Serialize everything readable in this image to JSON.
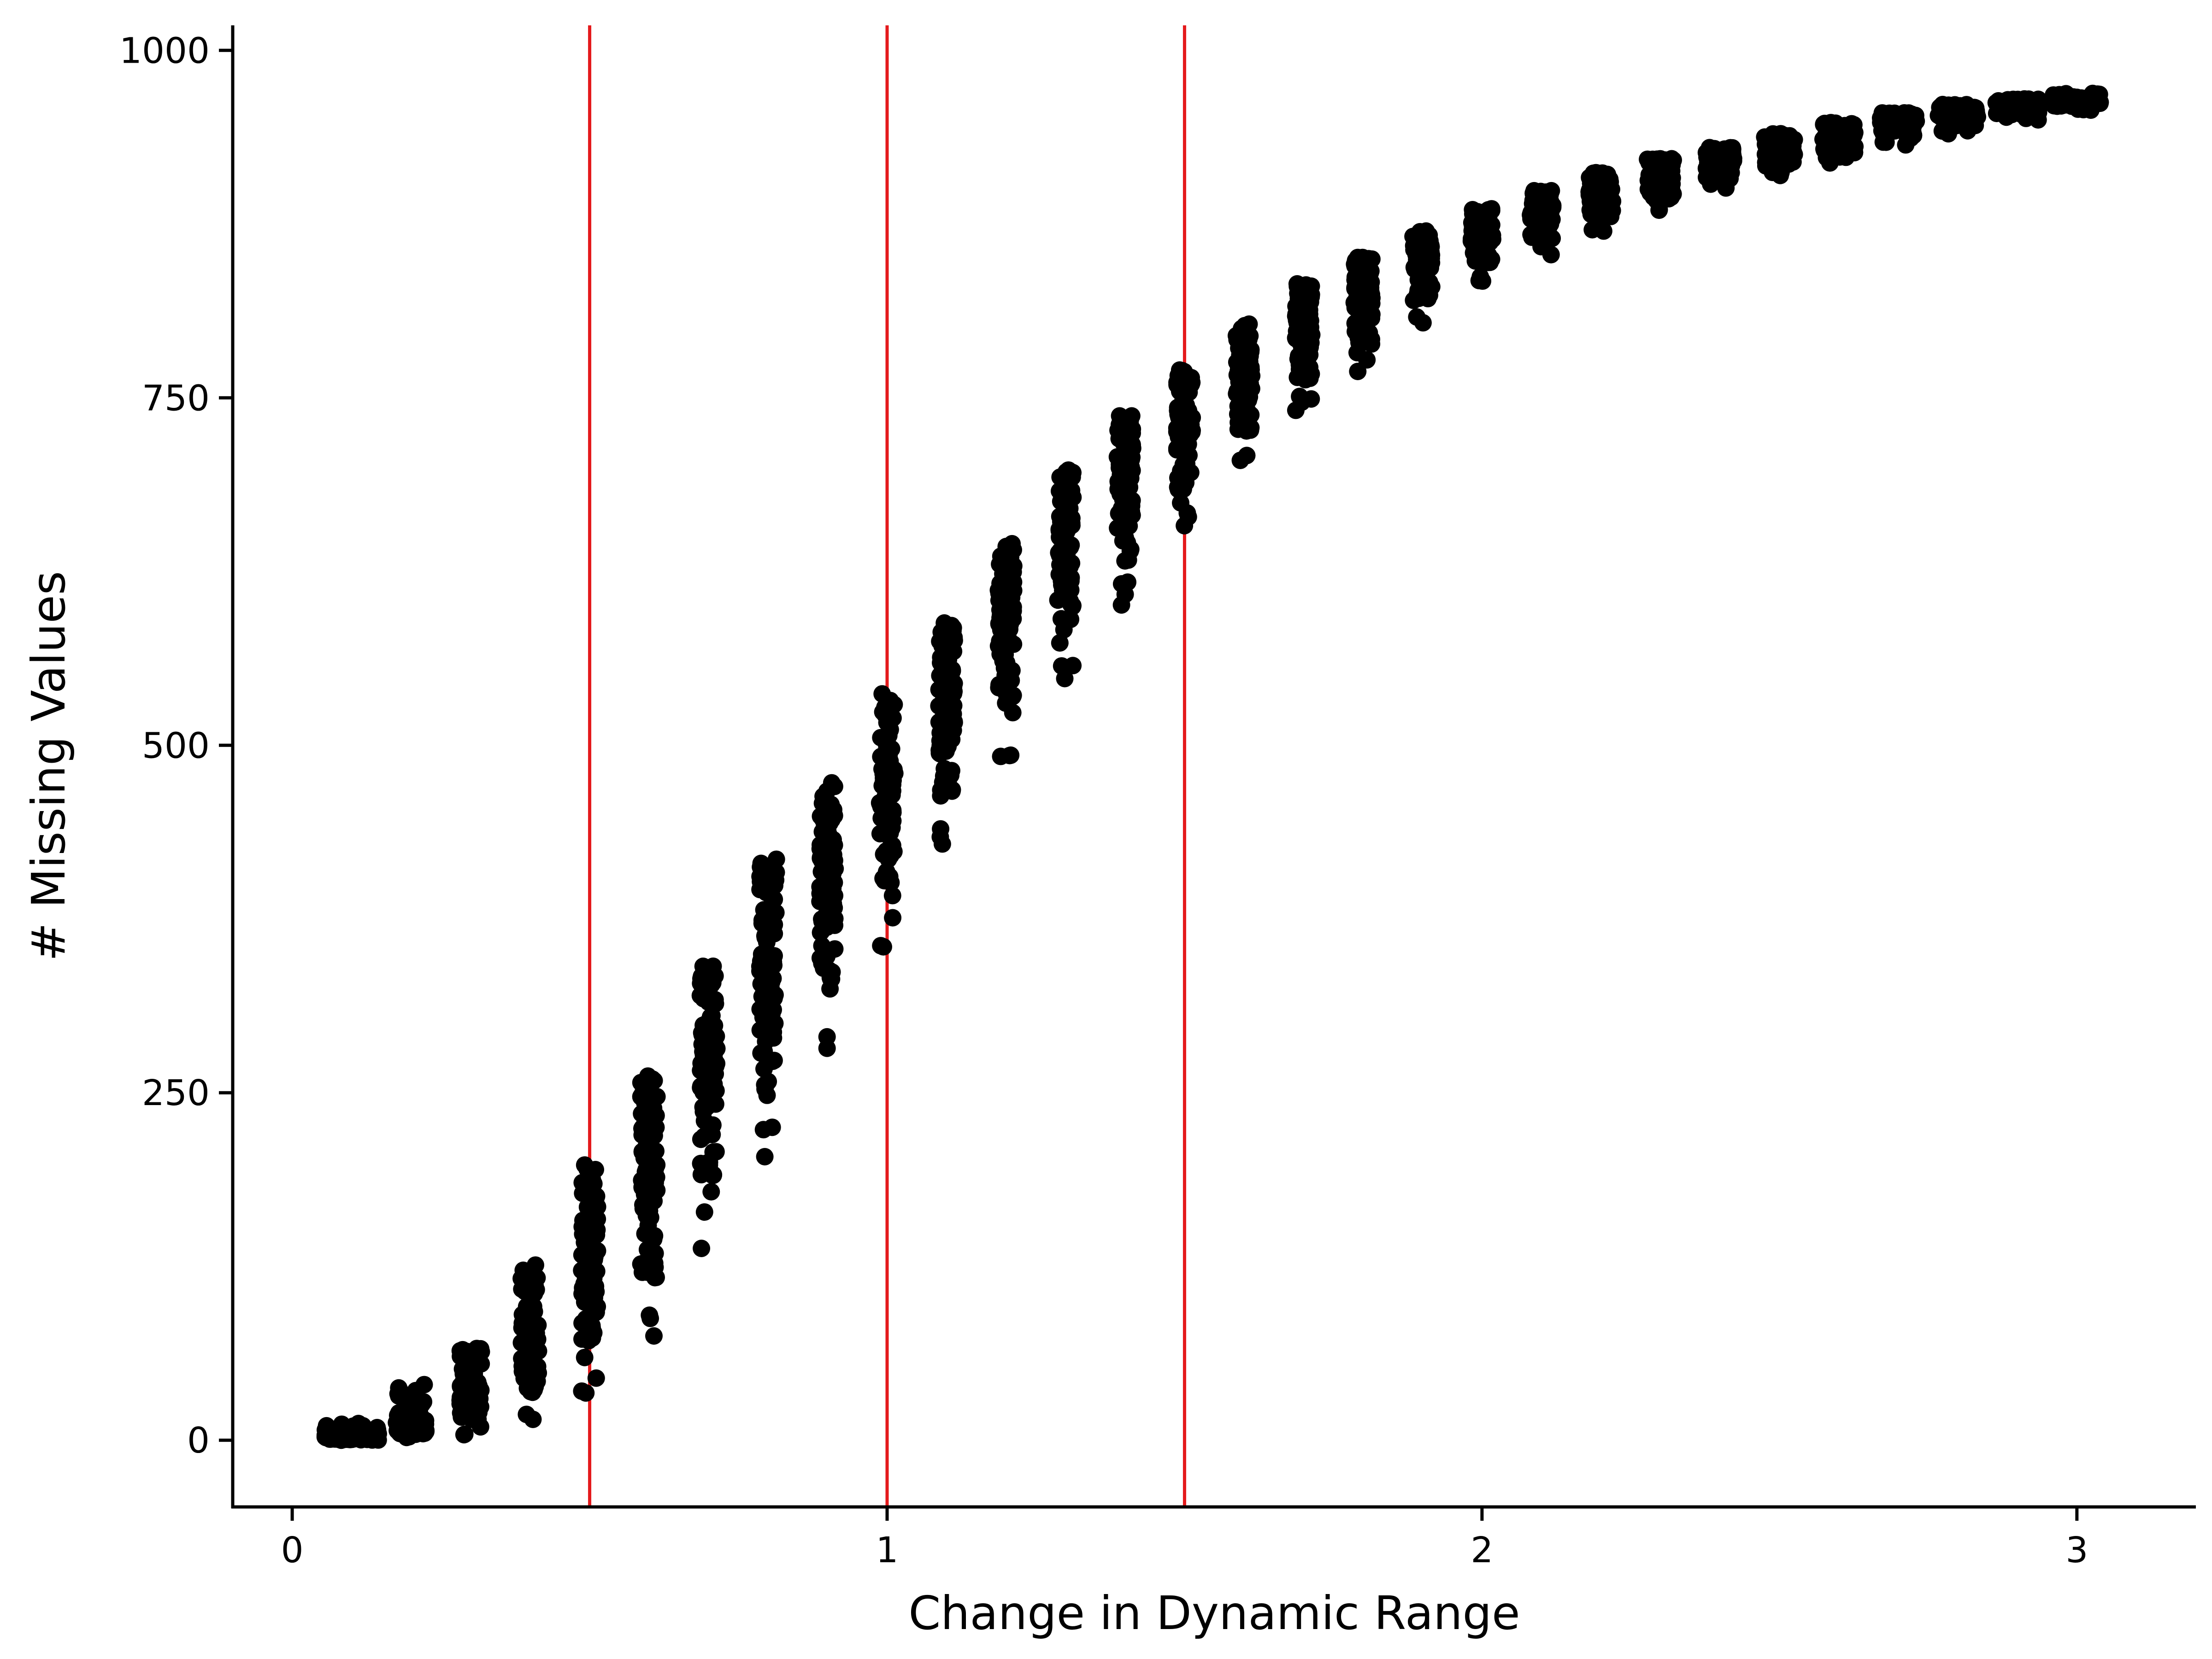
{
  "chart_data": {
    "type": "scatter",
    "title": "",
    "xlabel": "Change in Dynamic Range",
    "ylabel": "# Missing Values",
    "xlim": [
      -0.1,
      3.2
    ],
    "ylim": [
      -48,
      1018
    ],
    "x_ticks": [
      {
        "value": 0,
        "label": "0"
      },
      {
        "value": 1,
        "label": "1"
      },
      {
        "value": 2,
        "label": "2"
      },
      {
        "value": 3,
        "label": "3"
      }
    ],
    "y_ticks": [
      {
        "value": 0,
        "label": "0"
      },
      {
        "value": 250,
        "label": "250"
      },
      {
        "value": 500,
        "label": "500"
      },
      {
        "value": 750,
        "label": "750"
      },
      {
        "value": 1000,
        "label": "1000"
      }
    ],
    "grid": false,
    "legend": "none",
    "reference_lines": {
      "orientation": "vertical",
      "x": [
        0.5,
        1.0,
        1.5
      ],
      "color": "#e41a1c"
    },
    "point_color": "#000000",
    "points_per_group": 100,
    "groups": [
      {
        "x": 0.1,
        "y_min": 0,
        "y_q1": 1,
        "y_median": 3,
        "y_q3": 5,
        "y_max": 12,
        "jitter": 0.045
      },
      {
        "x": 0.2,
        "y_min": 2,
        "y_q1": 7,
        "y_median": 11,
        "y_q3": 16,
        "y_max": 40,
        "jitter": 0.025
      },
      {
        "x": 0.3,
        "y_min": 4,
        "y_q1": 25,
        "y_median": 32,
        "y_q3": 44,
        "y_max": 66,
        "jitter": 0.018
      },
      {
        "x": 0.4,
        "y_min": 15,
        "y_q1": 55,
        "y_median": 72,
        "y_q3": 90,
        "y_max": 126,
        "jitter": 0.015
      },
      {
        "x": 0.5,
        "y_min": 34,
        "y_q1": 105,
        "y_median": 130,
        "y_q3": 160,
        "y_max": 198,
        "jitter": 0.014
      },
      {
        "x": 0.6,
        "y_min": 75,
        "y_q1": 165,
        "y_median": 190,
        "y_q3": 222,
        "y_max": 262,
        "jitter": 0.014
      },
      {
        "x": 0.7,
        "y_min": 138,
        "y_q1": 250,
        "y_median": 275,
        "y_q3": 300,
        "y_max": 341,
        "jitter": 0.014
      },
      {
        "x": 0.8,
        "y_min": 204,
        "y_q1": 310,
        "y_median": 338,
        "y_q3": 365,
        "y_max": 418,
        "jitter": 0.014
      },
      {
        "x": 0.9,
        "y_min": 282,
        "y_q1": 385,
        "y_median": 410,
        "y_q3": 435,
        "y_max": 473,
        "jitter": 0.013
      },
      {
        "x": 1.0,
        "y_min": 355,
        "y_q1": 445,
        "y_median": 470,
        "y_q3": 492,
        "y_max": 537,
        "jitter": 0.013
      },
      {
        "x": 1.1,
        "y_min": 429,
        "y_q1": 505,
        "y_median": 527,
        "y_q3": 550,
        "y_max": 588,
        "jitter": 0.013
      },
      {
        "x": 1.2,
        "y_min": 492,
        "y_q1": 570,
        "y_median": 592,
        "y_q3": 612,
        "y_max": 645,
        "jitter": 0.013
      },
      {
        "x": 1.3,
        "y_min": 548,
        "y_q1": 620,
        "y_median": 642,
        "y_q3": 662,
        "y_max": 698,
        "jitter": 0.013
      },
      {
        "x": 1.4,
        "y_min": 601,
        "y_q1": 670,
        "y_median": 690,
        "y_q3": 708,
        "y_max": 737,
        "jitter": 0.013
      },
      {
        "x": 1.5,
        "y_min": 658,
        "y_q1": 715,
        "y_median": 733,
        "y_q3": 748,
        "y_max": 770,
        "jitter": 0.013
      },
      {
        "x": 1.6,
        "y_min": 705,
        "y_q1": 752,
        "y_median": 768,
        "y_q3": 782,
        "y_max": 803,
        "jitter": 0.013
      },
      {
        "x": 1.7,
        "y_min": 741,
        "y_q1": 788,
        "y_median": 802,
        "y_q3": 814,
        "y_max": 832,
        "jitter": 0.014
      },
      {
        "x": 1.8,
        "y_min": 769,
        "y_q1": 815,
        "y_median": 828,
        "y_q3": 838,
        "y_max": 851,
        "jitter": 0.015
      },
      {
        "x": 1.9,
        "y_min": 804,
        "y_q1": 842,
        "y_median": 852,
        "y_q3": 860,
        "y_max": 870,
        "jitter": 0.016
      },
      {
        "x": 2.0,
        "y_min": 834,
        "y_q1": 862,
        "y_median": 870,
        "y_q3": 877,
        "y_max": 886,
        "jitter": 0.018
      },
      {
        "x": 2.1,
        "y_min": 853,
        "y_q1": 877,
        "y_median": 884,
        "y_q3": 890,
        "y_max": 899,
        "jitter": 0.019
      },
      {
        "x": 2.2,
        "y_min": 870,
        "y_q1": 892,
        "y_median": 898,
        "y_q3": 903,
        "y_max": 912,
        "jitter": 0.02
      },
      {
        "x": 2.3,
        "y_min": 885,
        "y_q1": 905,
        "y_median": 910,
        "y_q3": 915,
        "y_max": 922,
        "jitter": 0.022
      },
      {
        "x": 2.4,
        "y_min": 901,
        "y_q1": 915,
        "y_median": 920,
        "y_q3": 924,
        "y_max": 930,
        "jitter": 0.023
      },
      {
        "x": 2.5,
        "y_min": 910,
        "y_q1": 925,
        "y_median": 929,
        "y_q3": 933,
        "y_max": 940,
        "jitter": 0.025
      },
      {
        "x": 2.6,
        "y_min": 919,
        "y_q1": 935,
        "y_median": 939,
        "y_q3": 942,
        "y_max": 948,
        "jitter": 0.027
      },
      {
        "x": 2.7,
        "y_min": 932,
        "y_q1": 945,
        "y_median": 948,
        "y_q3": 951,
        "y_max": 955,
        "jitter": 0.03
      },
      {
        "x": 2.8,
        "y_min": 940,
        "y_q1": 952,
        "y_median": 955,
        "y_q3": 957,
        "y_max": 961,
        "jitter": 0.033
      },
      {
        "x": 2.9,
        "y_min": 950,
        "y_q1": 957,
        "y_median": 960,
        "y_q3": 962,
        "y_max": 965,
        "jitter": 0.036
      },
      {
        "x": 3.0,
        "y_min": 957,
        "y_q1": 962,
        "y_median": 964,
        "y_q3": 966,
        "y_max": 969,
        "jitter": 0.04
      }
    ]
  }
}
